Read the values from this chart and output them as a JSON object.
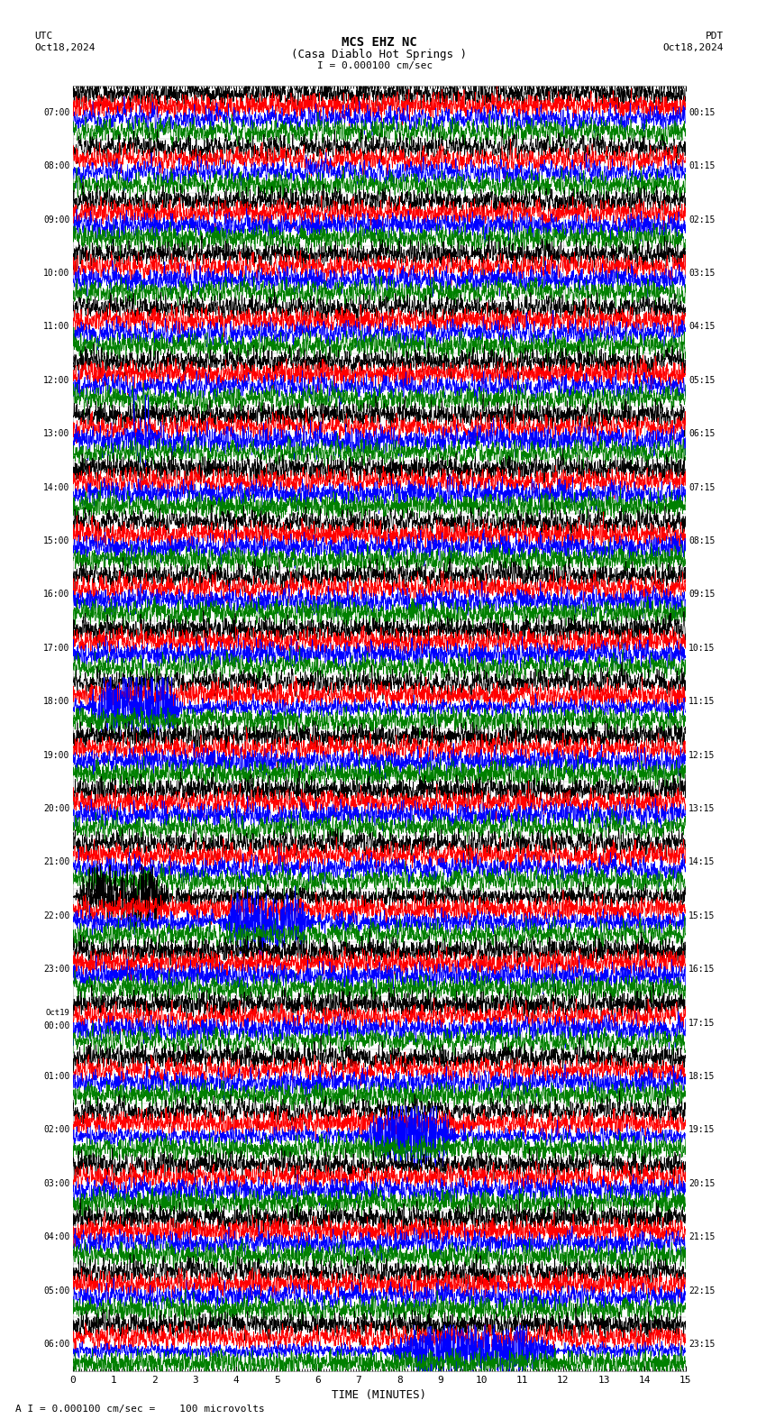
{
  "title_line1": "MCS EHZ NC",
  "title_line2": "(Casa Diablo Hot Springs )",
  "scale_label": "I = 0.000100 cm/sec",
  "utc_label": "UTC",
  "pdt_label": "PDT",
  "date_left": "Oct18,2024",
  "date_right": "Oct18,2024",
  "xlabel": "TIME (MINUTES)",
  "footer": "A I = 0.000100 cm/sec =    100 microvolts",
  "bg_color": "#ffffff",
  "trace_colors": [
    "black",
    "red",
    "blue",
    "green"
  ],
  "left_times": [
    "07:00",
    "08:00",
    "09:00",
    "10:00",
    "11:00",
    "12:00",
    "13:00",
    "14:00",
    "15:00",
    "16:00",
    "17:00",
    "18:00",
    "19:00",
    "20:00",
    "21:00",
    "22:00",
    "23:00",
    "Oct19\n00:00",
    "01:00",
    "02:00",
    "03:00",
    "04:00",
    "05:00",
    "06:00"
  ],
  "right_times": [
    "00:15",
    "01:15",
    "02:15",
    "03:15",
    "04:15",
    "05:15",
    "06:15",
    "07:15",
    "08:15",
    "09:15",
    "10:15",
    "11:15",
    "12:15",
    "13:15",
    "14:15",
    "15:15",
    "16:15",
    "17:15",
    "18:15",
    "19:15",
    "20:15",
    "21:15",
    "22:15",
    "23:15"
  ],
  "num_rows": 24,
  "traces_per_row": 4,
  "xmin": 0,
  "xmax": 15,
  "xticks": [
    0,
    1,
    2,
    3,
    4,
    5,
    6,
    7,
    8,
    9,
    10,
    11,
    12,
    13,
    14,
    15
  ],
  "grid_color": "#aaaaaa",
  "grid_minor_color": "#dddddd"
}
